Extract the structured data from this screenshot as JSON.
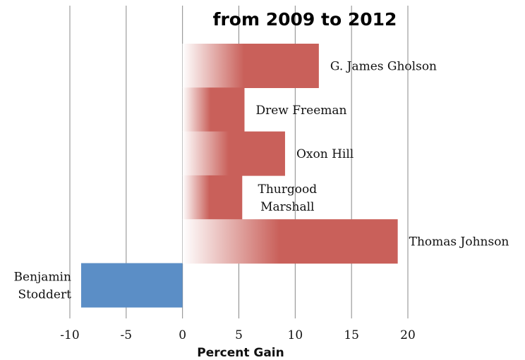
{
  "chart_data": {
    "type": "bar",
    "orientation": "horizontal",
    "title_visible_line": "from 2009 to 2012",
    "xlabel": "Percent Gain",
    "ylabel": "",
    "xlim": [
      -10,
      20
    ],
    "xticks": [
      -10,
      -5,
      0,
      5,
      10,
      15,
      20
    ],
    "xtick_labels": [
      "-10",
      "-5",
      "0",
      "5",
      "10",
      "15",
      "20"
    ],
    "grid": "vertical",
    "categories": [
      "G. James Gholson",
      "Drew Freeman",
      "Oxon Hill",
      "Thurgood Marshall",
      "Thomas Johnson",
      "Benjamin Stoddert"
    ],
    "label_lines": [
      [
        "G. James Gholson"
      ],
      [
        "Drew Freeman"
      ],
      [
        "Oxon Hill"
      ],
      [
        "Thurgood",
        "Marshall"
      ],
      [
        "Thomas Johnson"
      ],
      [
        "Benjamin",
        "Stoddert"
      ]
    ],
    "values": [
      12.1,
      5.5,
      9.1,
      5.3,
      19.1,
      -9.0
    ],
    "colors": {
      "positive": "#c9605a",
      "negative": "#5b8ec6",
      "grid": "#888888"
    }
  }
}
